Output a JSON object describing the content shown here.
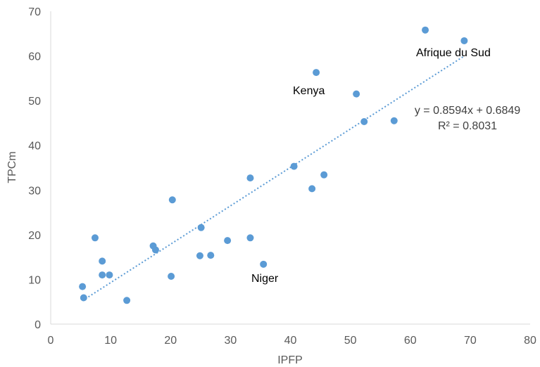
{
  "chart_data": {
    "type": "scatter",
    "xlabel": "IPFP",
    "ylabel": "TPCm",
    "xlim": [
      0,
      80
    ],
    "ylim": [
      0,
      70
    ],
    "x_ticks": [
      0,
      10,
      20,
      30,
      40,
      50,
      60,
      70,
      80
    ],
    "y_ticks": [
      0,
      10,
      20,
      30,
      40,
      50,
      60,
      70
    ],
    "grid": false,
    "legend": "none",
    "point_color": "#5b9bd5",
    "trendline_color": "#5b9bd5",
    "points": [
      {
        "x": 5.3,
        "y": 8.4
      },
      {
        "x": 5.5,
        "y": 5.9
      },
      {
        "x": 7.4,
        "y": 19.3
      },
      {
        "x": 8.6,
        "y": 14.1
      },
      {
        "x": 8.6,
        "y": 11.0
      },
      {
        "x": 9.8,
        "y": 11.0
      },
      {
        "x": 12.7,
        "y": 5.3
      },
      {
        "x": 17.1,
        "y": 17.5
      },
      {
        "x": 17.5,
        "y": 16.6
      },
      {
        "x": 20.1,
        "y": 10.7
      },
      {
        "x": 20.3,
        "y": 27.8
      },
      {
        "x": 24.9,
        "y": 15.3
      },
      {
        "x": 25.1,
        "y": 21.6
      },
      {
        "x": 26.7,
        "y": 15.4
      },
      {
        "x": 29.5,
        "y": 18.7
      },
      {
        "x": 33.3,
        "y": 32.7
      },
      {
        "x": 33.3,
        "y": 19.3
      },
      {
        "x": 35.5,
        "y": 13.4
      },
      {
        "x": 40.6,
        "y": 35.3
      },
      {
        "x": 43.6,
        "y": 30.3
      },
      {
        "x": 44.3,
        "y": 56.3
      },
      {
        "x": 45.6,
        "y": 33.4
      },
      {
        "x": 51.0,
        "y": 51.5
      },
      {
        "x": 52.3,
        "y": 45.3
      },
      {
        "x": 57.3,
        "y": 45.5
      },
      {
        "x": 62.5,
        "y": 65.8
      },
      {
        "x": 69.0,
        "y": 63.4
      }
    ],
    "trendline": {
      "slope": 0.8594,
      "intercept": 0.6849,
      "x_range": [
        5.3,
        69.0
      ],
      "equation": "y = 0.8594x + 0.6849",
      "r_squared": "R² = 0.8031"
    },
    "annotations": [
      {
        "text": "Afrique du Sud",
        "x": 69.0,
        "y": 63.4
      },
      {
        "text": "Kenya",
        "x": 44.3,
        "y": 56.3
      },
      {
        "text": "Niger",
        "x": 35.5,
        "y": 13.4
      }
    ]
  }
}
